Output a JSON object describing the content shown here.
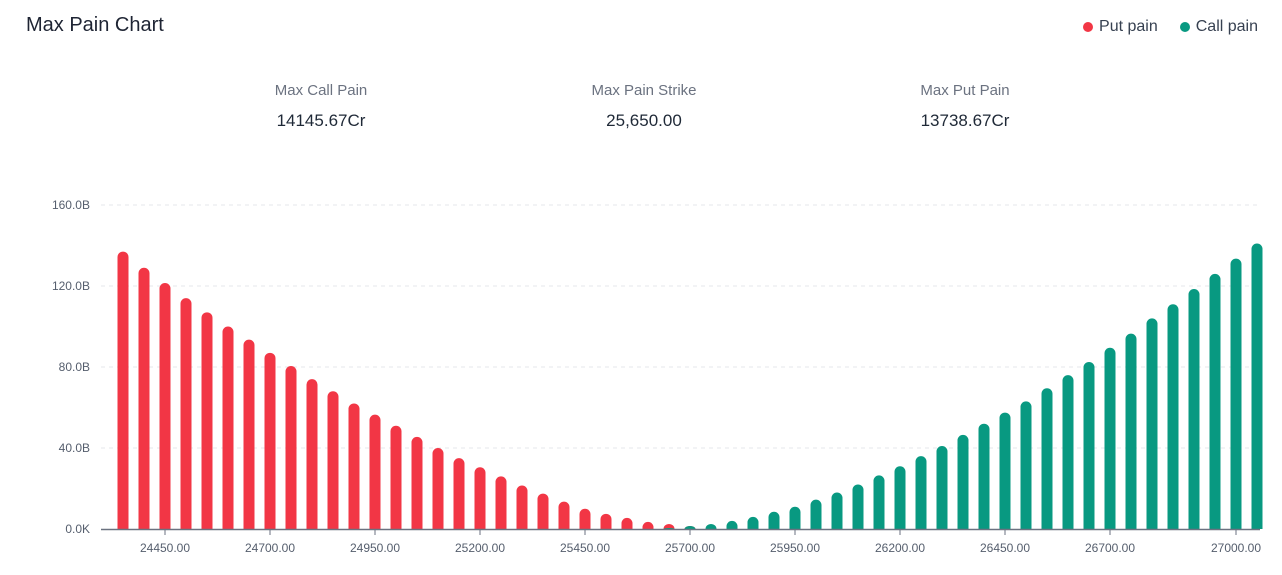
{
  "header": {
    "title": "Max Pain Chart"
  },
  "legend": [
    {
      "label": "Put pain",
      "color": "#f23645"
    },
    {
      "label": "Call pain",
      "color": "#089981"
    }
  ],
  "stats": [
    {
      "label": "Max Call Pain",
      "value": "14145.67Cr"
    },
    {
      "label": "Max Pain Strike",
      "value": "25,650.00"
    },
    {
      "label": "Max Put Pain",
      "value": "13738.67Cr"
    }
  ],
  "chart_data": {
    "type": "bar",
    "x": [
      24350,
      24400,
      24450,
      24500,
      24550,
      24600,
      24650,
      24700,
      24750,
      24800,
      24850,
      24900,
      24950,
      25000,
      25050,
      25100,
      25150,
      25200,
      25250,
      25300,
      25350,
      25400,
      25450,
      25500,
      25550,
      25600,
      25650,
      25700,
      25750,
      25800,
      25850,
      25900,
      25950,
      26000,
      26050,
      26100,
      26150,
      26200,
      26250,
      26300,
      26350,
      26400,
      26450,
      26500,
      26550,
      26600,
      26650,
      26700,
      26750,
      26800,
      26850,
      26900,
      26950,
      27000,
      27050
    ],
    "series": [
      {
        "name": "Put pain",
        "color": "#f23645",
        "values": [
          137,
          129,
          121.5,
          114,
          107,
          100,
          93.5,
          87,
          80.5,
          74,
          68,
          62,
          56.5,
          51,
          45.5,
          40,
          35,
          30.5,
          26,
          21.5,
          17.5,
          13.5,
          10,
          7.5,
          5.5,
          3.5,
          2.5,
          1.5,
          1,
          0.5,
          0.3,
          0.2,
          0.1,
          0,
          0,
          0,
          0,
          0,
          0,
          0,
          0,
          0,
          0,
          0,
          0,
          0,
          0,
          0,
          0,
          0,
          0,
          0,
          0,
          0,
          0
        ]
      },
      {
        "name": "Call pain",
        "color": "#089981",
        "values": [
          0,
          0,
          0,
          0,
          0,
          0,
          0,
          0,
          0,
          0,
          0,
          0,
          0,
          0,
          0,
          0,
          0,
          0,
          0,
          0,
          0,
          0,
          0,
          0,
          0,
          0,
          0.5,
          1.5,
          2.5,
          4,
          6,
          8.5,
          11,
          14.5,
          18,
          22,
          26.5,
          31,
          36,
          41,
          46.5,
          52,
          57.5,
          63,
          69.5,
          76,
          82.5,
          89.5,
          96.5,
          104,
          111,
          118.5,
          126,
          133.5,
          141
        ]
      }
    ],
    "y_ticks": [
      "0.0K",
      "40.0B",
      "80.0B",
      "120.0B",
      "160.0B"
    ],
    "y_tick_values": [
      0,
      40,
      80,
      120,
      160
    ],
    "x_tick_labels": [
      "24450.00",
      "24700.00",
      "24950.00",
      "25200.00",
      "25450.00",
      "25700.00",
      "25950.00",
      "26200.00",
      "26450.00",
      "26700.00",
      "27000.00"
    ],
    "x_tick_values": [
      24450,
      24700,
      24950,
      25200,
      25450,
      25700,
      25950,
      26200,
      26450,
      26700,
      27000
    ],
    "ylim": [
      0,
      160
    ],
    "grid": true,
    "legend_position": "top-right"
  }
}
